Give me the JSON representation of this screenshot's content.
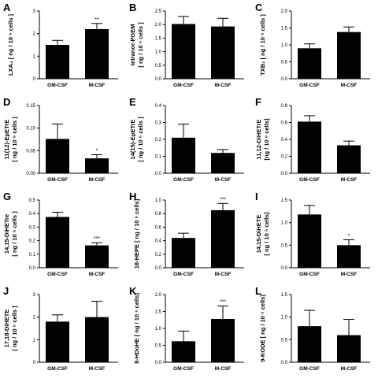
{
  "chart_data": [
    {
      "type": "bar",
      "panel": "A",
      "categories": [
        "GM-CSF",
        "M-CSF"
      ],
      "values": [
        1.5,
        2.2
      ],
      "errors": [
        0.2,
        0.25
      ],
      "significance": [
        "",
        "**"
      ],
      "ylabel_lines": [
        "LXA₄ [ ng / 10 ⁶ cells ]"
      ],
      "ylim": [
        0,
        3
      ],
      "yticks": [
        "0",
        "1",
        "2",
        "3"
      ]
    },
    {
      "type": "bar",
      "panel": "B",
      "categories": [
        "GM-CSF",
        "M-CSF"
      ],
      "values": [
        2.02,
        1.93
      ],
      "errors": [
        0.28,
        0.3
      ],
      "significance": [
        "",
        ""
      ],
      "ylabel_lines": [
        "tetranor-PGEM",
        "[ ng / 10 ⁶ cells ]"
      ],
      "ylim": [
        0,
        2.5
      ],
      "yticks": [
        "0.0",
        "0.5",
        "1.0",
        "1.5",
        "2.0",
        "2.5"
      ]
    },
    {
      "type": "bar",
      "panel": "C",
      "categories": [
        "GM-CSF",
        "M-CSF"
      ],
      "values": [
        0.9,
        1.38
      ],
      "errors": [
        0.13,
        0.15
      ],
      "significance": [
        "",
        ""
      ],
      "ylabel_lines": [
        "TXB₂ [ ng / 10 ⁶ cells ]"
      ],
      "ylim": [
        0,
        2.0
      ],
      "yticks": [
        "0.0",
        "0.5",
        "1.0",
        "1.5",
        "2.0"
      ]
    },
    {
      "type": "bar",
      "panel": "D",
      "categories": [
        "GM-CSF",
        "M-CSF"
      ],
      "values": [
        0.076,
        0.033
      ],
      "errors": [
        0.033,
        0.008
      ],
      "significance": [
        "",
        "*"
      ],
      "ylabel_lines": [
        "11(12)-EpETrE",
        "[ ng / 10 ⁶ cells ]"
      ],
      "ylim": [
        0,
        0.15
      ],
      "yticks": [
        "0.00",
        "0.05",
        "0.10",
        "0.15"
      ]
    },
    {
      "type": "bar",
      "panel": "E",
      "categories": [
        "GM-CSF",
        "M-CSF"
      ],
      "values": [
        0.21,
        0.12
      ],
      "errors": [
        0.08,
        0.02
      ],
      "significance": [
        "",
        ""
      ],
      "ylabel_lines": [
        "14(15)-EpETrE",
        "[ ng / 10 ⁶ cells ]"
      ],
      "ylim": [
        0,
        0.4
      ],
      "yticks": [
        "0.0",
        "0.1",
        "0.2",
        "0.3",
        "0.4"
      ]
    },
    {
      "type": "bar",
      "panel": "F",
      "categories": [
        "GM-CSF",
        "M-CSF"
      ],
      "values": [
        0.61,
        0.33
      ],
      "errors": [
        0.07,
        0.05
      ],
      "significance": [
        "",
        ""
      ],
      "ylabel_lines": [
        "11,12-DiHETrE",
        "[ng / 10 ⁶ cells]"
      ],
      "ylim": [
        0,
        0.8
      ],
      "yticks": [
        "0.0",
        "0.2",
        "0.4",
        "0.6",
        "0.8"
      ]
    },
    {
      "type": "bar",
      "panel": "G",
      "categories": [
        "GM-CSF",
        "M-CSF"
      ],
      "values": [
        0.375,
        0.165
      ],
      "errors": [
        0.035,
        0.02
      ],
      "significance": [
        "",
        "***"
      ],
      "ylabel_lines": [
        "14,15-DiHETre",
        "[ ng / 10 ⁶ cells ]"
      ],
      "ylim": [
        0,
        0.5
      ],
      "yticks": [
        "0.0",
        "0.1",
        "0.2",
        "0.3",
        "0.4",
        "0.5"
      ]
    },
    {
      "type": "bar",
      "panel": "H",
      "categories": [
        "GM-CSF",
        "M-CSF"
      ],
      "values": [
        0.44,
        0.85
      ],
      "errors": [
        0.07,
        0.1
      ],
      "significance": [
        "",
        "***"
      ],
      "ylabel_lines": [
        "18-HEPE [ ng / 10 ⁶ cells]"
      ],
      "ylim": [
        0,
        1.0
      ],
      "yticks": [
        "0.0",
        "0.2",
        "0.4",
        "0.6",
        "0.8",
        "1.0"
      ]
    },
    {
      "type": "bar",
      "panel": "I",
      "categories": [
        "GM-CSF",
        "M-CSF"
      ],
      "values": [
        1.18,
        0.5
      ],
      "errors": [
        0.2,
        0.12
      ],
      "significance": [
        "",
        "*"
      ],
      "ylabel_lines": [
        "14,15-DiHETE",
        "[ ng / 10 ⁶ cells]"
      ],
      "ylim": [
        0,
        1.5
      ],
      "yticks": [
        "0.0",
        "0.5",
        "1.0",
        "1.5"
      ]
    },
    {
      "type": "bar",
      "panel": "J",
      "categories": [
        "GM-CSF",
        "M-CSF"
      ],
      "values": [
        1.8,
        2.0
      ],
      "errors": [
        0.3,
        0.7
      ],
      "significance": [
        "",
        ""
      ],
      "ylabel_lines": [
        "17,18-DiHETE",
        "[ ng / 10 ⁶ cells ]"
      ],
      "ylim": [
        0,
        3
      ],
      "yticks": [
        "0",
        "1",
        "2",
        "3"
      ]
    },
    {
      "type": "bar",
      "panel": "K",
      "categories": [
        "GM-CSF",
        "M-CSF"
      ],
      "values": [
        0.62,
        1.28
      ],
      "errors": [
        0.3,
        0.38
      ],
      "significance": [
        "",
        "***"
      ],
      "ylabel_lines": [
        "8-HDoHE [ ng / 10 ⁶ cells]"
      ],
      "ylim": [
        0,
        2.0
      ],
      "yticks": [
        "0.0",
        "0.5",
        "1.0",
        "1.5",
        "2.0"
      ]
    },
    {
      "type": "bar",
      "panel": "L",
      "categories": [
        "GM-CSF",
        "M-CSF"
      ],
      "values": [
        0.8,
        0.6
      ],
      "errors": [
        0.35,
        0.35
      ],
      "significance": [
        "",
        ""
      ],
      "ylabel_lines": [
        "9-KODE [ ng / 10 ⁶ cells]"
      ],
      "ylim": [
        0,
        1.5
      ],
      "yticks": [
        "0.0",
        "0.5",
        "1.0",
        "1.5"
      ]
    }
  ]
}
